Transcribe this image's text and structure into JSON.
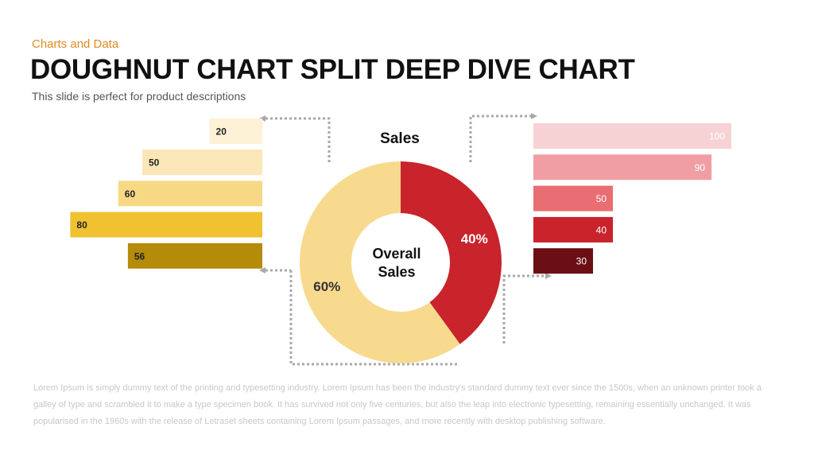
{
  "header": {
    "category": "Charts and Data",
    "title": "DOUGHNUT CHART SPLIT DEEP DIVE CHART",
    "description": "This slide is perfect for product descriptions"
  },
  "body_text": "Lorem Ipsum is simply dummy text of the printing and typesetting industry. Lorem Ipsum has been the industry's standard dummy text ever since the 1500s, when an unknown printer took a galley of type and scrambled it to make a type specimen book. It has survived not only five centuries, but also the leap into electronic typesetting, remaining essentially unchanged. It was popularised in the 1960s with the release of Letraset sheets containing Lorem Ipsum passages, and more recently with desktop publishing software.",
  "chart_data": [
    {
      "type": "pie",
      "title": "Sales",
      "center_label": [
        "Overall",
        "Sales"
      ],
      "slices": [
        {
          "label": "60%",
          "value": 60,
          "color": "#f7da8e"
        },
        {
          "label": "40%",
          "value": 40,
          "color": "#c9232c"
        }
      ]
    },
    {
      "type": "bar",
      "orientation": "horizontal",
      "direction": "right-to-left",
      "values": [
        20,
        50,
        60,
        80,
        56
      ],
      "colors": [
        "#fdf1d6",
        "#fbe6b8",
        "#f7d985",
        "#f0c232",
        "#b58b0a"
      ],
      "label_color": "#222222",
      "scale_max": 100
    },
    {
      "type": "bar",
      "orientation": "horizontal",
      "direction": "left-to-right",
      "values": [
        100,
        90,
        50,
        40,
        30
      ],
      "colors": [
        "#f7d2d5",
        "#f09ea4",
        "#e86e73",
        "#c9232c",
        "#6b0f15"
      ],
      "label_color": "#ffffff",
      "scale_max": 100
    }
  ]
}
